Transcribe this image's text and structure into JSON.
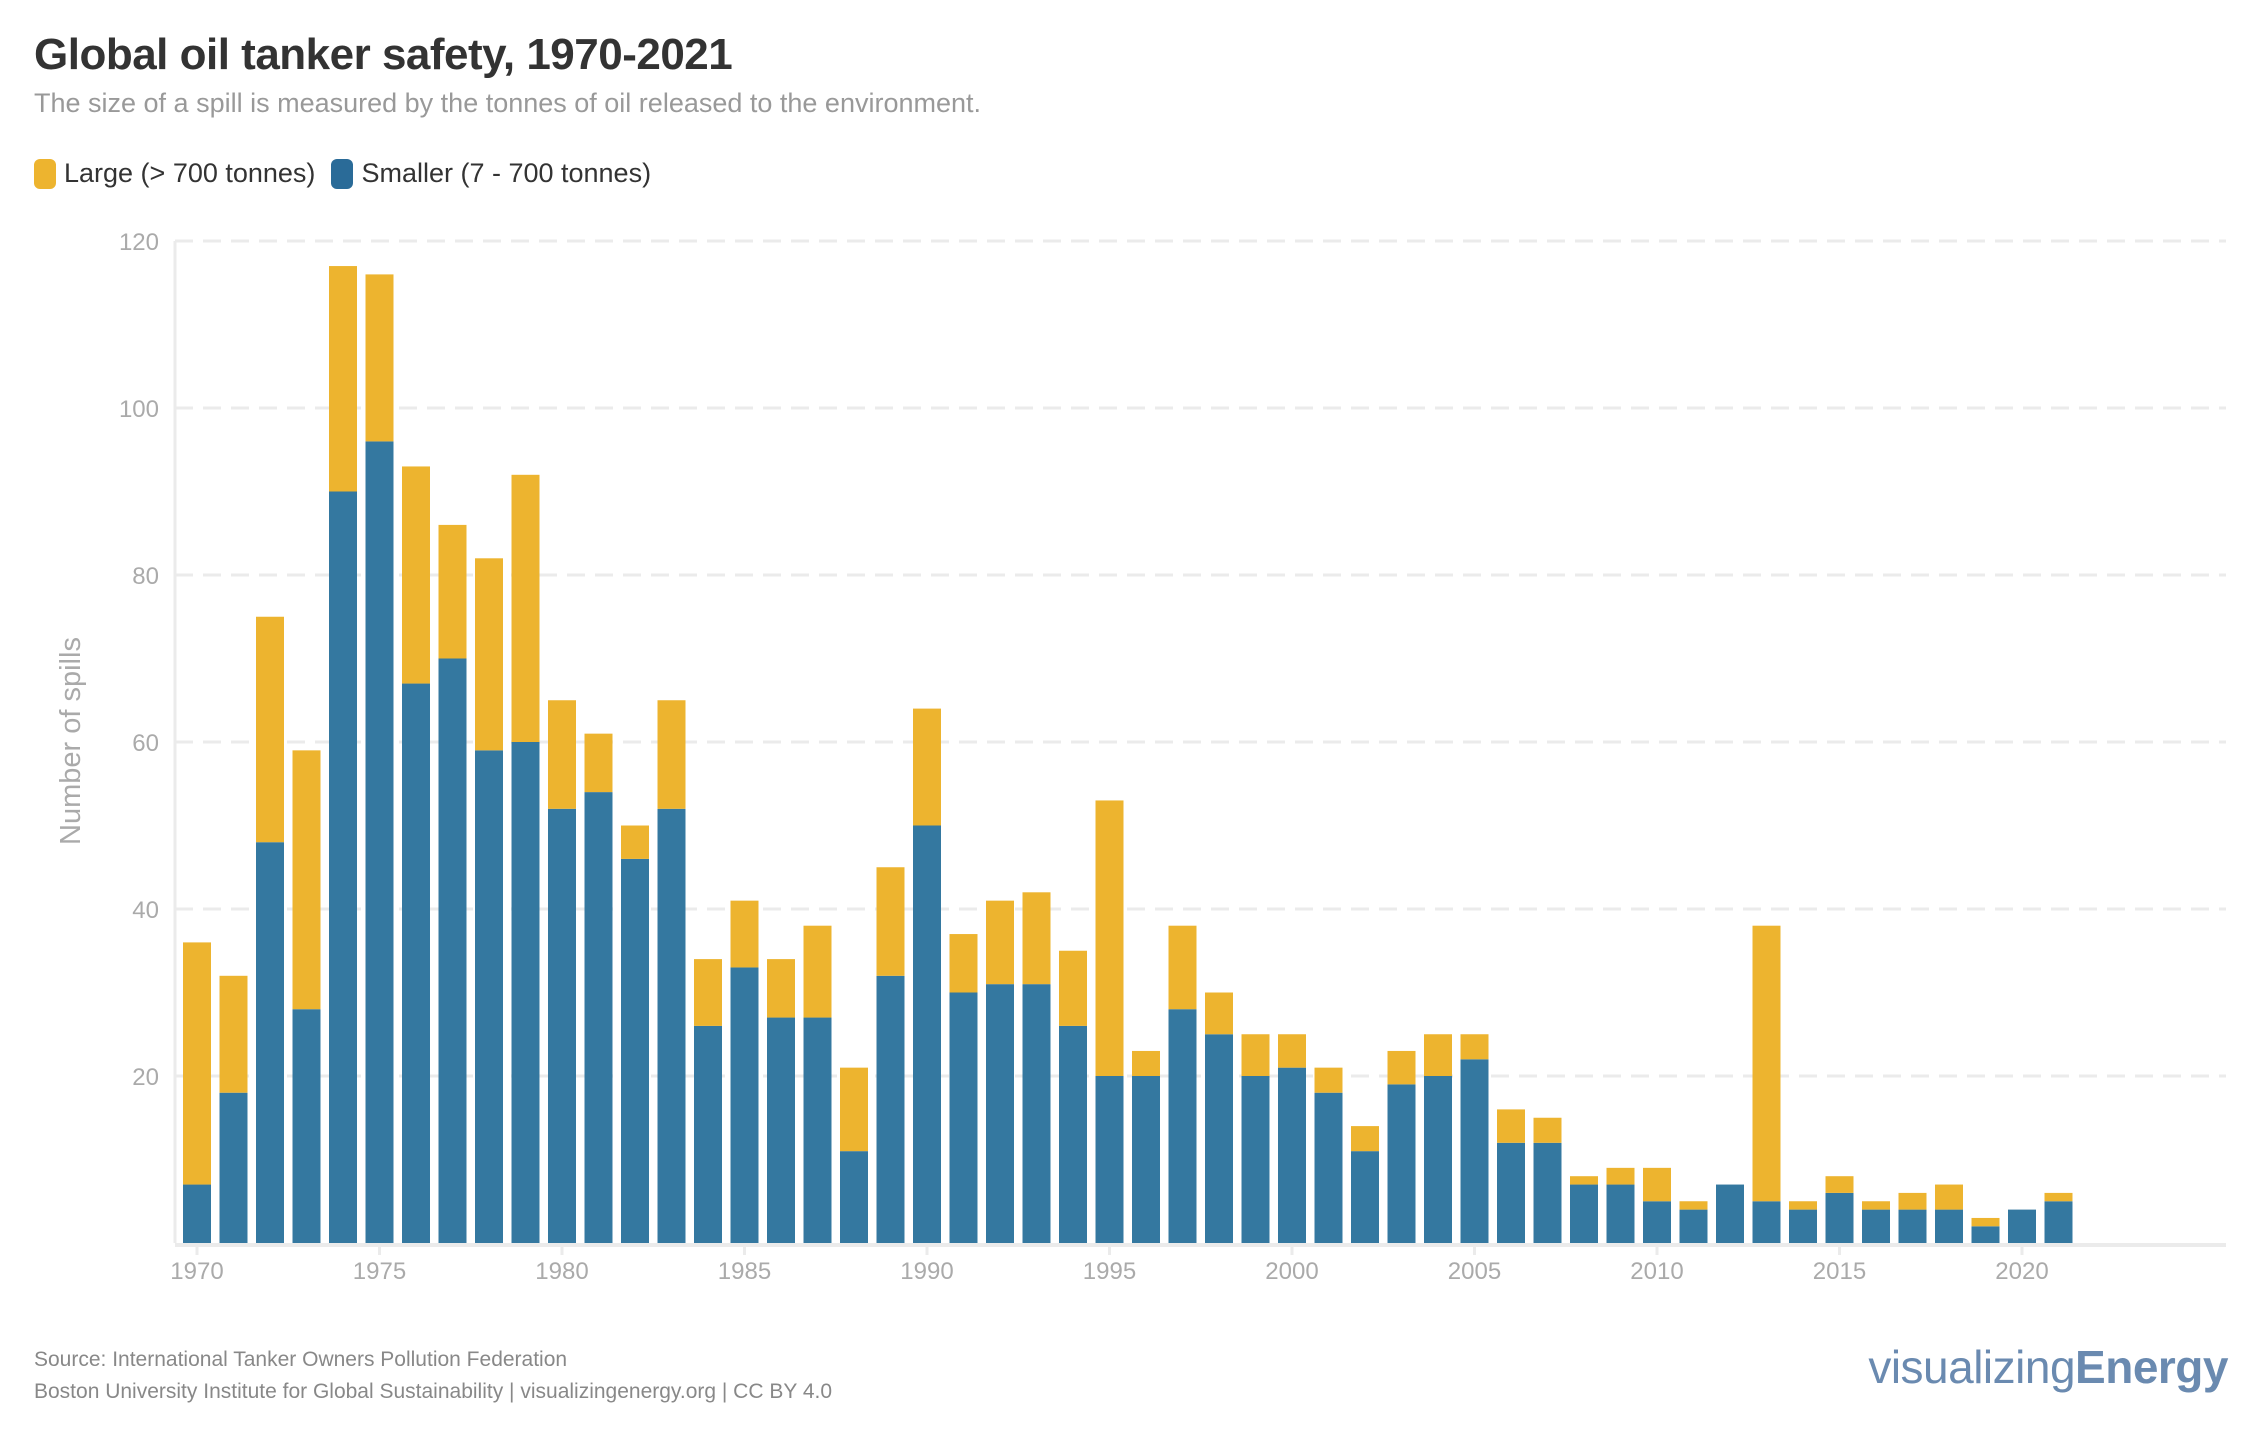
{
  "colors": {
    "large": "#edb42f",
    "smaller": "#3478a0",
    "grid": "#ebebeb",
    "axis_text": "#aaaaaa",
    "logo": "#6a8ab0"
  },
  "chart_data": {
    "type": "bar",
    "stacked": true,
    "title": "Global oil tanker safety, 1970-2021",
    "subtitle": "The size of a spill is measured by the tonnes of oil released to the environment.",
    "xlabel": "",
    "ylabel": "Number of spills",
    "ylim": [
      0,
      120
    ],
    "yticks": [
      20,
      40,
      60,
      80,
      100,
      120
    ],
    "xticks": [
      1970,
      1975,
      1980,
      1985,
      1990,
      1995,
      2000,
      2005,
      2010,
      2015,
      2020
    ],
    "grid": "horizontal dashed",
    "legend_position": "top-left",
    "categories": [
      1970,
      1971,
      1972,
      1973,
      1974,
      1975,
      1976,
      1977,
      1978,
      1979,
      1980,
      1981,
      1982,
      1983,
      1984,
      1985,
      1986,
      1987,
      1988,
      1989,
      1990,
      1991,
      1992,
      1993,
      1994,
      1995,
      1996,
      1997,
      1998,
      1999,
      2000,
      2001,
      2002,
      2003,
      2004,
      2005,
      2006,
      2007,
      2008,
      2009,
      2010,
      2011,
      2012,
      2013,
      2014,
      2015,
      2016,
      2017,
      2018,
      2019,
      2020,
      2021
    ],
    "series": [
      {
        "name": "Smaller (7 - 700 tonnes)",
        "values": [
          7,
          18,
          48,
          28,
          90,
          96,
          67,
          70,
          59,
          60,
          52,
          54,
          46,
          52,
          26,
          33,
          27,
          27,
          11,
          32,
          50,
          30,
          31,
          31,
          26,
          20,
          20,
          28,
          25,
          20,
          21,
          18,
          11,
          19,
          20,
          22,
          12,
          12,
          7,
          7,
          5,
          4,
          7,
          5,
          4,
          6,
          4,
          4,
          4,
          2,
          4,
          5
        ]
      },
      {
        "name": "Large (> 700 tonnes)",
        "values": [
          29,
          14,
          27,
          31,
          27,
          20,
          26,
          16,
          23,
          32,
          13,
          7,
          4,
          13,
          8,
          8,
          7,
          11,
          10,
          13,
          14,
          7,
          10,
          11,
          9,
          33,
          3,
          10,
          5,
          5,
          4,
          3,
          3,
          4,
          5,
          3,
          4,
          3,
          1,
          2,
          4,
          1,
          0,
          33,
          1,
          2,
          1,
          2,
          3,
          1,
          0,
          1
        ]
      }
    ]
  },
  "legend": {
    "large": "Large (> 700 tonnes)",
    "smaller": "Smaller (7 - 700 tonnes)"
  },
  "footer": {
    "source": "Source: International Tanker Owners Pollution Federation",
    "credit": "Boston University Institute for Global Sustainability | visualizingenergy.org | CC BY 4.0"
  },
  "logo": {
    "light": "visualizing",
    "bold": "Energy"
  }
}
